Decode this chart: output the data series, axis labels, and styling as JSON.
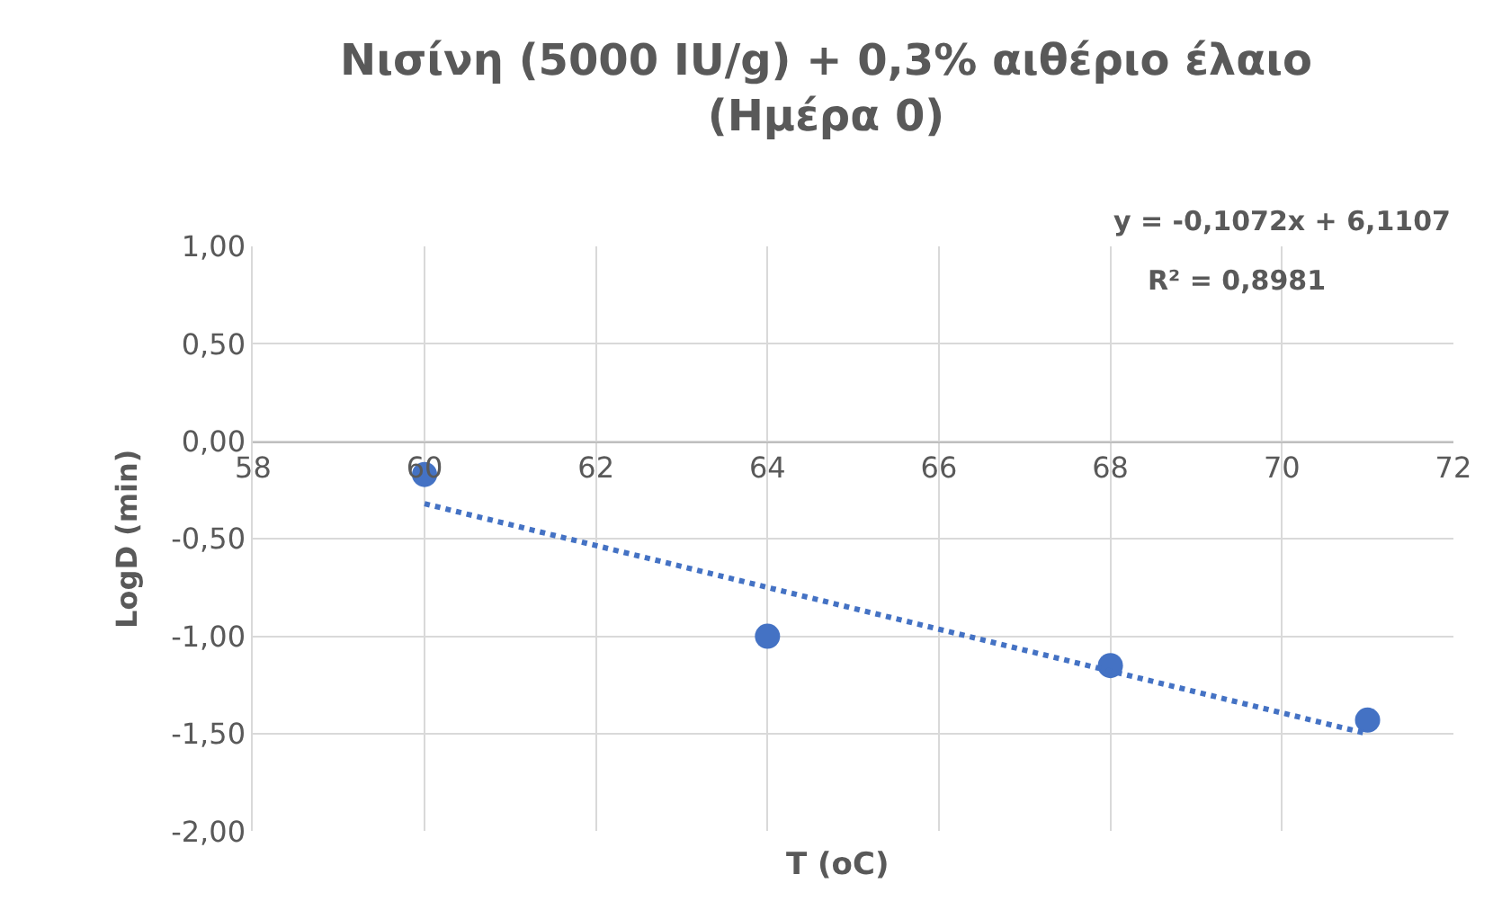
{
  "chart_data": {
    "type": "scatter",
    "title": "Νισίνη (5000 IU/g) + 0,3% αιθέριο έλαιο (Ημέρα 0)",
    "xlabel": "T (oC)",
    "ylabel": "LogD (min)",
    "x": [
      60,
      64,
      68,
      71
    ],
    "series": [
      {
        "color": "#4472c4",
        "values": [
          -0.17,
          -1.0,
          -1.15,
          -1.43
        ],
        "marker": "circle"
      },
      {
        "type": "line",
        "color": "#4472c4",
        "x": [
          60,
          71
        ],
        "values": [
          -0.32,
          -1.5
        ],
        "line_style": "dotted",
        "marker": "none"
      }
    ],
    "annotations": [
      "y = -0,1072x + 6,1107",
      "R² = 0,8981"
    ],
    "xlim": [
      58,
      72
    ],
    "xticks": [
      58,
      60,
      62,
      64,
      66,
      68,
      70,
      72
    ],
    "ylim": [
      -2,
      1
    ],
    "yticks": [
      {
        "value": -2,
        "label": "-2,00"
      },
      {
        "value": -1.5,
        "label": "-1,50"
      },
      {
        "value": -1,
        "label": "-1,00"
      },
      {
        "value": -0.5,
        "label": "-0,50"
      },
      {
        "value": 0,
        "label": "0,00"
      },
      {
        "value": 0.5,
        "label": "0,50"
      },
      {
        "value": 1,
        "label": "1,00"
      }
    ],
    "grid": true
  }
}
